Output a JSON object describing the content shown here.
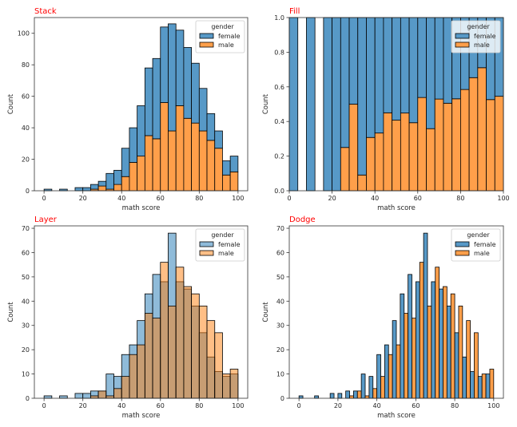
{
  "chart_data": [
    {
      "type": "bar",
      "mode": "stack",
      "title": "Stack",
      "xlabel": "math score",
      "ylabel": "Count",
      "xlim": [
        -5,
        105
      ],
      "ylim": [
        0,
        110
      ],
      "xticks": [
        0,
        20,
        40,
        60,
        80,
        100
      ],
      "yticks": [
        0,
        20,
        40,
        60,
        80,
        100
      ],
      "ytick_labels": [
        "0",
        "20",
        "40",
        "60",
        "80",
        "100"
      ],
      "bin_edges": [
        0,
        4,
        8,
        12,
        16,
        20,
        24,
        28,
        32,
        36,
        40,
        44,
        48,
        52,
        56,
        60,
        64,
        68,
        72,
        76,
        80,
        84,
        88,
        92,
        96,
        100
      ],
      "legend": {
        "title": "gender",
        "entries": [
          "female",
          "male"
        ],
        "placement": "top-right"
      },
      "series": [
        {
          "name": "female",
          "color": "#1f77b4",
          "values": [
            1,
            0,
            1,
            0,
            2,
            2,
            3,
            3,
            10,
            9,
            18,
            22,
            32,
            43,
            51,
            48,
            68,
            48,
            45,
            38,
            27,
            17,
            11,
            9,
            10
          ]
        },
        {
          "name": "male",
          "color": "#ff7f0e",
          "values": [
            0,
            0,
            0,
            0,
            0,
            0,
            1,
            3,
            1,
            4,
            9,
            18,
            22,
            35,
            33,
            56,
            38,
            54,
            46,
            43,
            38,
            32,
            27,
            10,
            12
          ]
        }
      ],
      "grid": false
    },
    {
      "type": "bar",
      "mode": "fill",
      "title": "Fill",
      "xlabel": "math score",
      "ylabel": "Count",
      "xlim": [
        0,
        100
      ],
      "ylim": [
        0,
        1
      ],
      "xticks": [
        0,
        20,
        40,
        60,
        80,
        100
      ],
      "yticks": [
        0,
        0.2,
        0.4,
        0.6,
        0.8,
        1.0
      ],
      "ytick_labels": [
        "0.0",
        "0.2",
        "0.4",
        "0.6",
        "0.8",
        "1.0"
      ],
      "bin_edges": [
        0,
        4,
        8,
        12,
        16,
        20,
        24,
        28,
        32,
        36,
        40,
        44,
        48,
        52,
        56,
        60,
        64,
        68,
        72,
        76,
        80,
        84,
        88,
        92,
        96,
        100
      ],
      "legend": {
        "title": "gender",
        "entries": [
          "female",
          "male"
        ],
        "placement": "top-right"
      },
      "series": [
        {
          "name": "female",
          "color": "#1f77b4",
          "values": [
            1,
            0,
            1,
            0,
            2,
            2,
            3,
            3,
            10,
            9,
            18,
            22,
            32,
            43,
            51,
            48,
            68,
            48,
            45,
            38,
            27,
            17,
            11,
            9,
            10
          ]
        },
        {
          "name": "male",
          "color": "#ff7f0e",
          "values": [
            0,
            0,
            0,
            0,
            0,
            0,
            1,
            3,
            1,
            4,
            9,
            18,
            22,
            35,
            33,
            56,
            38,
            54,
            46,
            43,
            38,
            32,
            27,
            10,
            12
          ]
        }
      ],
      "grid": false
    },
    {
      "type": "bar",
      "mode": "layer",
      "title": "Layer",
      "xlabel": "math score",
      "ylabel": "Count",
      "xlim": [
        -5,
        105
      ],
      "ylim": [
        0,
        71
      ],
      "xticks": [
        0,
        20,
        40,
        60,
        80,
        100
      ],
      "yticks": [
        0,
        10,
        20,
        30,
        40,
        50,
        60,
        70
      ],
      "ytick_labels": [
        "0",
        "10",
        "20",
        "30",
        "40",
        "50",
        "60",
        "70"
      ],
      "bin_edges": [
        0,
        4,
        8,
        12,
        16,
        20,
        24,
        28,
        32,
        36,
        40,
        44,
        48,
        52,
        56,
        60,
        64,
        68,
        72,
        76,
        80,
        84,
        88,
        92,
        96,
        100
      ],
      "legend": {
        "title": "gender",
        "entries": [
          "female",
          "male"
        ],
        "placement": "top-right"
      },
      "series": [
        {
          "name": "female",
          "color": "#1f77b4",
          "values": [
            1,
            0,
            1,
            0,
            2,
            2,
            3,
            3,
            10,
            9,
            18,
            22,
            32,
            43,
            51,
            48,
            68,
            48,
            45,
            38,
            27,
            17,
            11,
            9,
            10
          ]
        },
        {
          "name": "male",
          "color": "#ff7f0e",
          "values": [
            0,
            0,
            0,
            0,
            0,
            0,
            1,
            3,
            1,
            4,
            9,
            18,
            22,
            35,
            33,
            56,
            38,
            54,
            46,
            43,
            38,
            32,
            27,
            10,
            12
          ]
        }
      ],
      "grid": false
    },
    {
      "type": "bar",
      "mode": "dodge",
      "title": "Dodge",
      "xlabel": "math score",
      "ylabel": "Count",
      "xlim": [
        -5,
        105
      ],
      "ylim": [
        0,
        71
      ],
      "xticks": [
        0,
        20,
        40,
        60,
        80,
        100
      ],
      "yticks": [
        0,
        10,
        20,
        30,
        40,
        50,
        60,
        70
      ],
      "ytick_labels": [
        "0",
        "10",
        "20",
        "30",
        "40",
        "50",
        "60",
        "70"
      ],
      "bin_edges": [
        0,
        4,
        8,
        12,
        16,
        20,
        24,
        28,
        32,
        36,
        40,
        44,
        48,
        52,
        56,
        60,
        64,
        68,
        72,
        76,
        80,
        84,
        88,
        92,
        96,
        100
      ],
      "legend": {
        "title": "gender",
        "entries": [
          "female",
          "male"
        ],
        "placement": "top-right"
      },
      "series": [
        {
          "name": "female",
          "color": "#1f77b4",
          "values": [
            1,
            0,
            1,
            0,
            2,
            2,
            3,
            3,
            10,
            9,
            18,
            22,
            32,
            43,
            51,
            48,
            68,
            48,
            45,
            38,
            27,
            17,
            11,
            9,
            10
          ]
        },
        {
          "name": "male",
          "color": "#ff7f0e",
          "values": [
            0,
            0,
            0,
            0,
            0,
            0,
            1,
            3,
            1,
            4,
            9,
            18,
            22,
            35,
            33,
            56,
            38,
            54,
            46,
            43,
            38,
            32,
            27,
            10,
            12
          ]
        }
      ],
      "grid": false
    }
  ]
}
